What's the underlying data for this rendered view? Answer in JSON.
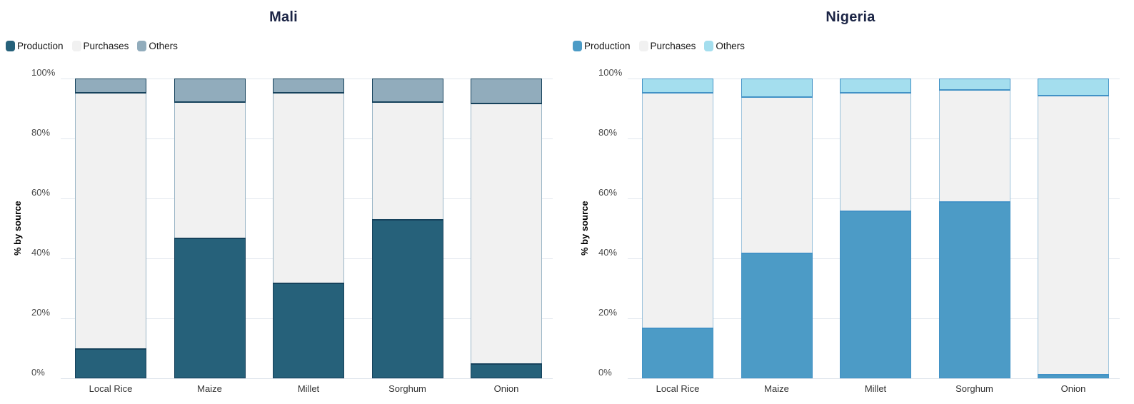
{
  "chart_data": [
    {
      "type": "bar",
      "stacked": true,
      "title": "Mali",
      "title_color": "#1b2445",
      "ylabel": "% by source",
      "categories": [
        "Local Rice",
        "Maize",
        "Millet",
        "Sorghum",
        "Onion"
      ],
      "series": [
        {
          "name": "Production",
          "color": "#26617a",
          "values": [
            10,
            47,
            32,
            53,
            5
          ]
        },
        {
          "name": "Purchases",
          "color": "#f1f1f1",
          "values": [
            85,
            45,
            63,
            39,
            86.5
          ]
        },
        {
          "name": "Others",
          "color": "#91acbc",
          "values": [
            5,
            8,
            5,
            8,
            8.5
          ]
        }
      ],
      "ylim": [
        0,
        100
      ],
      "yticks": [
        "0%",
        "20%",
        "40%",
        "60%",
        "80%",
        "100%"
      ],
      "grid": true,
      "legend_position": "top-left",
      "border_strong": "#16425c",
      "border_soft": "#9ab5c6"
    },
    {
      "type": "bar",
      "stacked": true,
      "title": "Nigeria",
      "title_color": "#1b2445",
      "ylabel": "% by source",
      "categories": [
        "Local Rice",
        "Maize",
        "Millet",
        "Sorghum",
        "Onion"
      ],
      "series": [
        {
          "name": "Production",
          "color": "#4c9bc6",
          "values": [
            17,
            42,
            56,
            59,
            1.5
          ]
        },
        {
          "name": "Purchases",
          "color": "#f1f1f1",
          "values": [
            78,
            51.5,
            39,
            37,
            92.5
          ]
        },
        {
          "name": "Others",
          "color": "#a4deee",
          "values": [
            5,
            6.5,
            5,
            4,
            6
          ]
        }
      ],
      "ylim": [
        0,
        100
      ],
      "yticks": [
        "0%",
        "20%",
        "40%",
        "60%",
        "80%",
        "100%"
      ],
      "grid": true,
      "legend_position": "top-left",
      "border_strong": "#4292c6",
      "border_soft": "#9cc3dc"
    }
  ]
}
